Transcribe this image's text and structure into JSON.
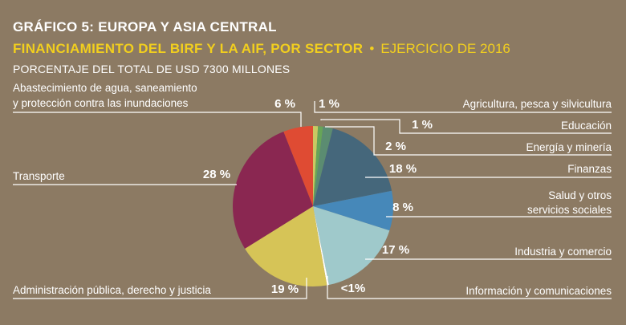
{
  "header": {
    "figure_title": "GRÁFICO 5: EUROPA Y ASIA CENTRAL",
    "subtitle_main": "FINANCIAMIENTO DEL BIRF Y LA AIF, POR SECTOR",
    "subtitle_sep": "•",
    "subtitle_year": "EJERCICIO DE 2016",
    "unit_line": "PORCENTAJE DEL TOTAL DE USD 7300 MILLONES"
  },
  "colors": {
    "background": "#8c7a63",
    "text": "#ffffff",
    "accent": "#f2cf1e",
    "leader": "#ffffff"
  },
  "chart_data": {
    "type": "pie",
    "total_usd_millions": 7300,
    "slices": [
      {
        "label": "Agricultura, pesca y silvicultura",
        "value_label": "1 %",
        "value": 1,
        "color": "#c9c962"
      },
      {
        "label": "Educación",
        "value_label": "1 %",
        "value": 1,
        "color": "#66a558"
      },
      {
        "label": "Energía y minería",
        "value_label": "2 %",
        "value": 2,
        "color": "#5b8c71"
      },
      {
        "label": "Finanzas",
        "value_label": "18 %",
        "value": 18,
        "color": "#45677b"
      },
      {
        "label": "Salud y otros servicios sociales",
        "label_lines": [
          "Salud y otros",
          "servicios sociales"
        ],
        "value_label": "8 %",
        "value": 8,
        "color": "#4688b9"
      },
      {
        "label": "Industria y comercio",
        "value_label": "17 %",
        "value": 17,
        "color": "#9fc9cb"
      },
      {
        "label": "Información y comunicaciones",
        "value_label": "<1%",
        "value": 0.4,
        "color": "#ffffff"
      },
      {
        "label": "Administración pública, derecho y justicia",
        "value_label": "19 %",
        "value": 19,
        "color": "#d6c457"
      },
      {
        "label": "Transporte",
        "value_label": "28 %",
        "value": 28,
        "color": "#8a2751"
      },
      {
        "label": "Abastecimiento de agua, saneamiento y protección contra las inundaciones",
        "label_lines": [
          "Abastecimiento de agua, saneamiento",
          "y protección contra las inundaciones"
        ],
        "value_label": "6 %",
        "value": 6,
        "color": "#df4b33"
      }
    ]
  }
}
